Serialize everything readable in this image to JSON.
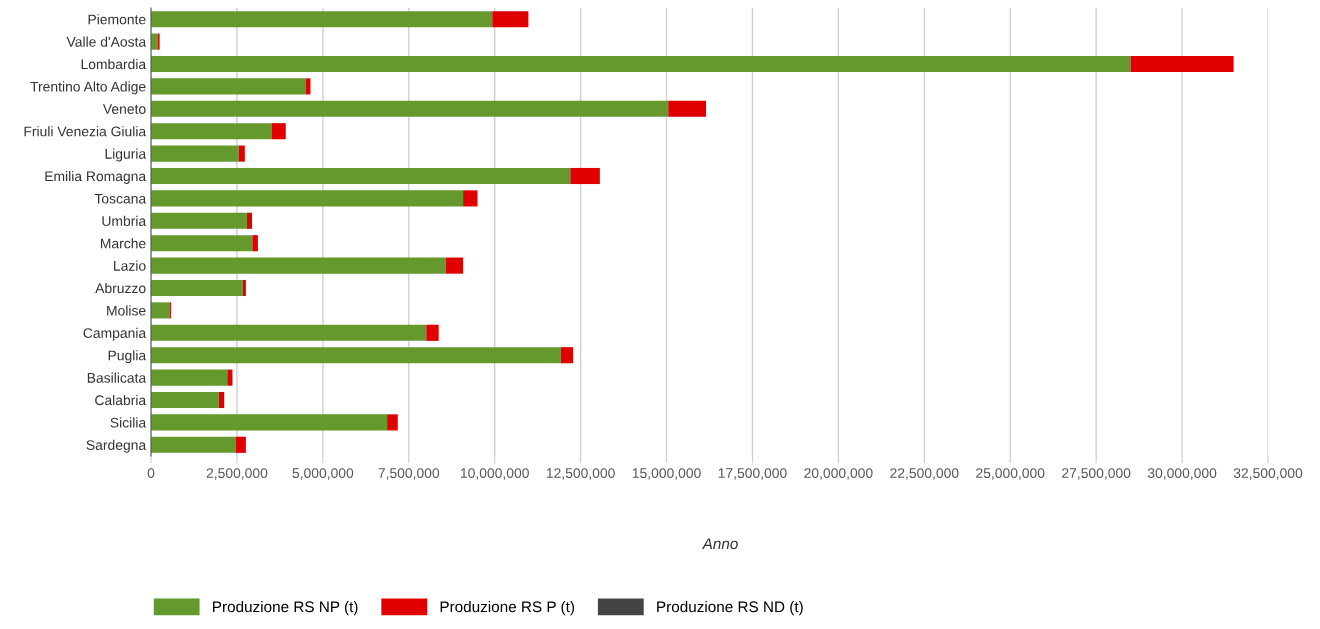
{
  "chart_data": {
    "type": "bar",
    "orientation": "horizontal",
    "stacked": true,
    "xlabel": "Anno",
    "categories": [
      "Piemonte",
      "Valle d'Aosta",
      "Lombardia",
      "Trentino Alto Adige",
      "Veneto",
      "Friuli Venezia Giulia",
      "Liguria",
      "Emilia Romagna",
      "Toscana",
      "Umbria",
      "Marche",
      "Lazio",
      "Abruzzo",
      "Molise",
      "Campania",
      "Puglia",
      "Basilicata",
      "Calabria",
      "Sicilia",
      "Sardegna"
    ],
    "series": [
      {
        "name": "Produzione RS NP (t)",
        "color": "#65992e",
        "values": [
          9930000,
          190000,
          28500000,
          4510000,
          15050000,
          3520000,
          2550000,
          12200000,
          9080000,
          2790000,
          2950000,
          8570000,
          2670000,
          550000,
          8010000,
          11920000,
          2220000,
          1970000,
          6870000,
          2460000
        ]
      },
      {
        "name": "Produzione RS P (t)",
        "color": "#e00000",
        "values": [
          1050000,
          60000,
          3000000,
          130000,
          1100000,
          400000,
          180000,
          860000,
          420000,
          150000,
          160000,
          510000,
          90000,
          30000,
          360000,
          360000,
          150000,
          160000,
          310000,
          300000
        ]
      },
      {
        "name": "Produzione RS ND (t)",
        "color": "#444444",
        "values": [
          null,
          null,
          null,
          null,
          null,
          null,
          null,
          null,
          null,
          null,
          null,
          null,
          null,
          null,
          null,
          null,
          null,
          null,
          null,
          null
        ]
      }
    ],
    "xlim": [
      0,
      32500000
    ],
    "xticks": [
      {
        "value": 0,
        "label": "0"
      },
      {
        "value": 2500000,
        "label": "2,500,000"
      },
      {
        "value": 5000000,
        "label": "5,000,000"
      },
      {
        "value": 7500000,
        "label": "7,500,000"
      },
      {
        "value": 10000000,
        "label": "10,000,000"
      },
      {
        "value": 12500000,
        "label": "12,500,000"
      },
      {
        "value": 15000000,
        "label": "15,000,000"
      },
      {
        "value": 17500000,
        "label": "17,500,000"
      },
      {
        "value": 20000000,
        "label": "20,000,000"
      },
      {
        "value": 22500000,
        "label": "22,500,000"
      },
      {
        "value": 25000000,
        "label": "25,000,000"
      },
      {
        "value": 27500000,
        "label": "27,500,000"
      },
      {
        "value": 30000000,
        "label": "30,000,000"
      },
      {
        "value": 32500000,
        "label": "32,500,000"
      }
    ],
    "grid": "x",
    "legend": "bottom left"
  }
}
